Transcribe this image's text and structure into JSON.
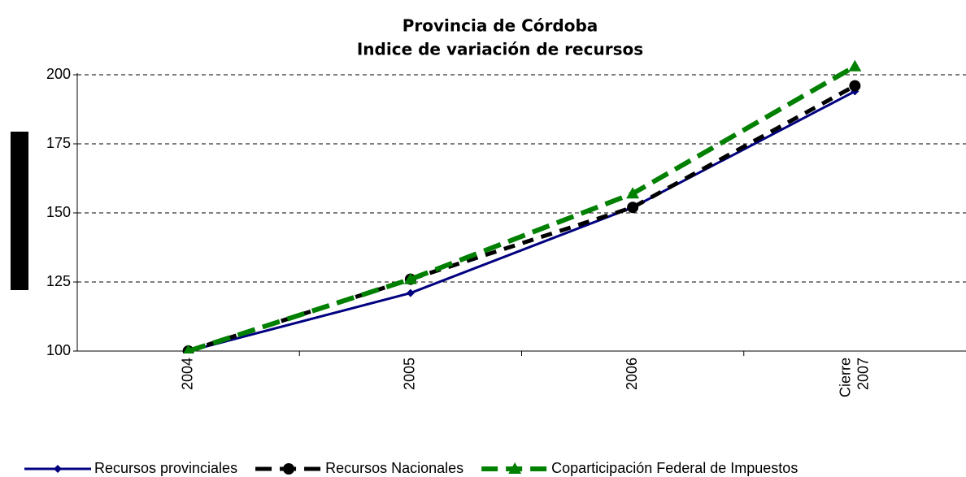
{
  "chart_data": {
    "type": "line",
    "title": "Provincia de Córdoba",
    "subtitle": "Indice de variación de recursos",
    "categories": [
      "2004",
      "2005",
      "2006",
      "Cierre 2007"
    ],
    "series": [
      {
        "name": "Recursos provinciales",
        "color": "#000080",
        "marker": "diamond",
        "dash": "solid",
        "values": [
          100,
          121,
          152,
          194
        ]
      },
      {
        "name": "Recursos Nacionales",
        "color": "#000000",
        "marker": "circle",
        "dash": "dashed",
        "values": [
          100,
          126,
          152,
          196
        ]
      },
      {
        "name": "Coparticipación Federal de Impuestos",
        "color": "#008000",
        "marker": "triangle",
        "dash": "dashed",
        "values": [
          100,
          126,
          157,
          203
        ]
      }
    ],
    "ylim": [
      100,
      200
    ],
    "yticks": [
      100,
      125,
      150,
      175,
      200
    ],
    "grid": true,
    "legend": "bottom"
  }
}
